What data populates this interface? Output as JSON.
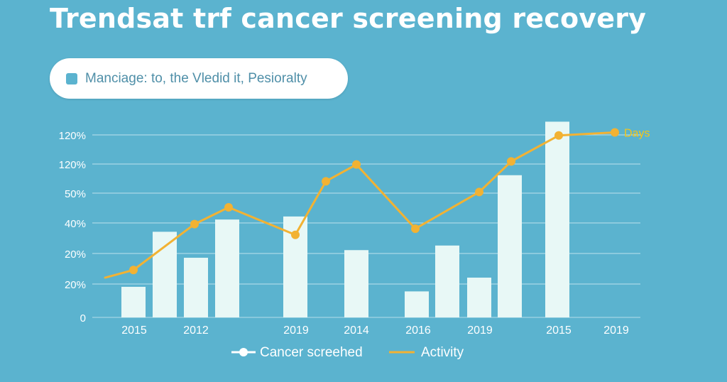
{
  "colors": {
    "background": "#5bb3cf",
    "bar": "#e8f8f6",
    "line": "#f2b233",
    "line_label": "#f5c518",
    "text": "#ffffff",
    "grid": "#ffffff"
  },
  "header": {
    "title": "Trendsat trf cancer screening recovery",
    "subtitle": "Manciage: to, the Vledid it, Pesioralty"
  },
  "chart_data": {
    "type": "bar",
    "title": "Trendsat trf cancer screening recovery",
    "subtitle": "Manciage: to, the Vledid it, Pesioralty",
    "xlabel": "",
    "ylabel": "",
    "grid": true,
    "legend_position": "bottom",
    "y_tick_labels": [
      "0",
      "20%",
      "20%",
      "40%",
      "50%",
      "120%",
      "120%"
    ],
    "x_tick_labels": [
      "2015",
      "2012",
      "2019",
      "2014",
      "2016",
      "2019",
      "2015",
      "2019"
    ],
    "series": [
      {
        "name": "Cancer screehed",
        "kind": "bar",
        "values": [
          1.0,
          2.8,
          1.95,
          3.2,
          3.3,
          2.2,
          0.85,
          2.35,
          1.3,
          4.65,
          6.4
        ]
      },
      {
        "name": "Activity",
        "kind": "line",
        "end_label": "Days",
        "x": [
          0.4,
          1.0,
          2.3,
          3.3,
          4.3,
          4.6,
          5.2,
          6.2,
          7.7,
          8.1,
          9.0,
          9.8
        ],
        "values": [
          1.3,
          1.55,
          3.05,
          3.6,
          2.7,
          4.45,
          5.0,
          2.9,
          4.1,
          5.1,
          5.95,
          6.05
        ]
      }
    ],
    "bar_x": [
      1,
      2,
      3,
      4,
      6,
      7,
      8,
      9,
      10,
      11,
      12.5
    ],
    "ylim": [
      0,
      6.2
    ]
  },
  "legend": {
    "items": [
      "Cancer screehed",
      "Activity"
    ]
  }
}
